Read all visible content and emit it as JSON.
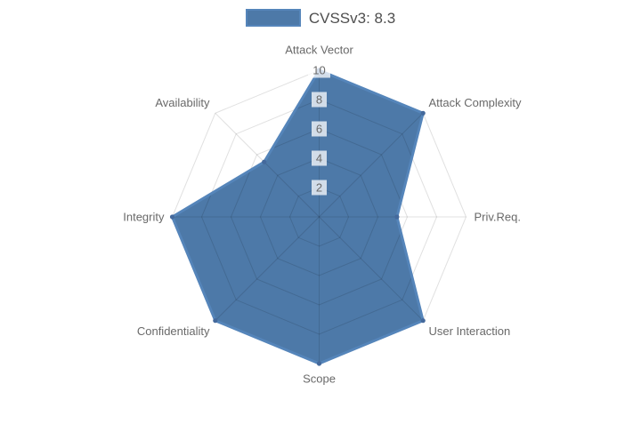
{
  "legend": {
    "items": [
      {
        "label": "CVSSv3: 8.3"
      }
    ]
  },
  "colors": {
    "background": "#ffffff",
    "series_fill": "#4d79a8",
    "series_border": "#5585ba",
    "point_marker": "#44699c",
    "grid_line": "rgba(0,0,0,0.12)",
    "axis_label_text": "#696969",
    "tick_text": "#696969",
    "tick_backdrop": "rgba(255,255,255,0.75)",
    "legend_text": "#4e4e4e"
  },
  "chart_data": {
    "type": "radar",
    "title": "",
    "categories": [
      "Attack Vector",
      "Attack Complexity",
      "Priv.Req.",
      "User Interaction",
      "Scope",
      "Confidentiality",
      "Integrity",
      "Availability"
    ],
    "series": [
      {
        "name": "CVSSv3: 8.3",
        "values": [
          10,
          10,
          5.3,
          10,
          10,
          10,
          10,
          5.3
        ]
      }
    ],
    "ticks": [
      2,
      4,
      6,
      8,
      10
    ],
    "rlim": [
      0,
      10
    ],
    "start_axis": "top",
    "direction": "clockwise",
    "grid": true,
    "legend_position": "top"
  }
}
